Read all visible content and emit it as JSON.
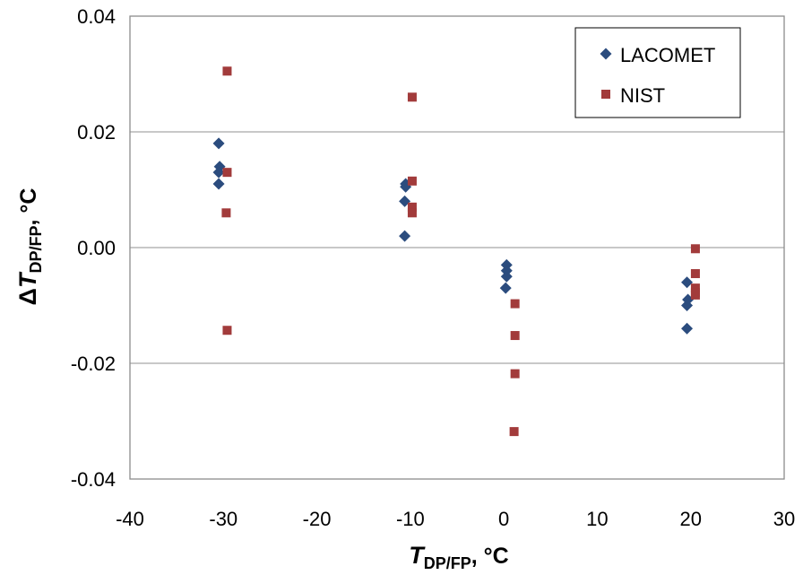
{
  "chart_data": {
    "type": "scatter",
    "xlim": [
      -40,
      30
    ],
    "ylim": [
      -0.04,
      0.04
    ],
    "x_ticks": [
      -40,
      -30,
      -20,
      -10,
      0,
      10,
      20,
      30
    ],
    "x_tick_labels": [
      "-40",
      "-30",
      "-20",
      "-10",
      "0",
      "10",
      "20",
      "30"
    ],
    "y_ticks": [
      0.04,
      0.02,
      0.0,
      -0.02,
      -0.04
    ],
    "y_tick_labels": [
      "0.04",
      "0.02",
      "0.00",
      "-0.02",
      "-0.04"
    ],
    "grid": "horizontal",
    "xlabel": {
      "symbol": "T",
      "subscript": "DP/FP",
      "unit": ", °C"
    },
    "ylabel": {
      "prefix": "Δ",
      "symbol": "T",
      "subscript": "DP/FP",
      "unit": ", °C"
    },
    "legend_position": "top-right",
    "series": [
      {
        "name": "LACOMET",
        "marker": "diamond",
        "color": "#2B4C7E",
        "points": [
          [
            -30.5,
            0.018
          ],
          [
            -30.4,
            0.014
          ],
          [
            -30.5,
            0.013
          ],
          [
            -30.5,
            0.011
          ],
          [
            -10.5,
            0.011
          ],
          [
            -10.5,
            0.0105
          ],
          [
            -10.6,
            0.008
          ],
          [
            -10.6,
            0.002
          ],
          [
            0.3,
            -0.003
          ],
          [
            0.3,
            -0.004
          ],
          [
            0.3,
            -0.005
          ],
          [
            0.2,
            -0.007
          ],
          [
            19.6,
            -0.006
          ],
          [
            19.7,
            -0.009
          ],
          [
            19.6,
            -0.01
          ],
          [
            19.6,
            -0.014
          ]
        ]
      },
      {
        "name": "NIST",
        "marker": "square",
        "color": "#A23B3B",
        "points": [
          [
            -29.6,
            0.0305
          ],
          [
            -29.6,
            0.013
          ],
          [
            -29.7,
            0.006
          ],
          [
            -29.6,
            -0.0143
          ],
          [
            -9.8,
            0.026
          ],
          [
            -9.8,
            0.0115
          ],
          [
            -9.8,
            0.007
          ],
          [
            -9.8,
            0.006
          ],
          [
            1.2,
            -0.0097
          ],
          [
            1.2,
            -0.0152
          ],
          [
            1.2,
            -0.0218
          ],
          [
            1.1,
            -0.0318
          ],
          [
            20.5,
            -0.0002
          ],
          [
            20.5,
            -0.0045
          ],
          [
            20.5,
            -0.007
          ],
          [
            20.5,
            -0.0078
          ],
          [
            20.5,
            -0.0082
          ]
        ]
      }
    ]
  }
}
